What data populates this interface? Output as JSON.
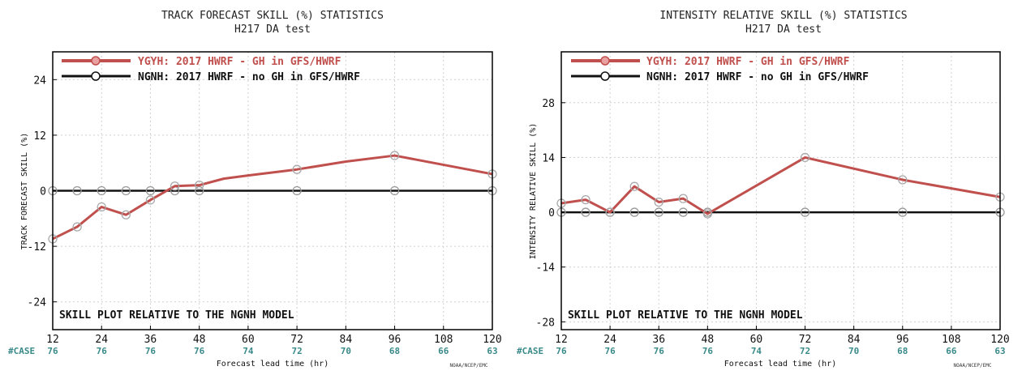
{
  "credit": "NOAA/NCEP/EMC",
  "chart_data": [
    {
      "type": "line",
      "title": "TRACK FORECAST SKILL (%) STATISTICS",
      "subtitle": "H217 DA test",
      "xlabel": "Forecast lead time (hr)",
      "ylabel": "TRACK FORECAST SKILL (%)",
      "xlim": [
        12,
        120
      ],
      "ylim": [
        -30,
        30
      ],
      "xticks": [
        12,
        24,
        36,
        48,
        60,
        72,
        84,
        96,
        108,
        120
      ],
      "yticks": [
        -24,
        -12,
        0,
        12,
        24
      ],
      "grid": true,
      "legend_position": "top-left",
      "note": "SKILL PLOT RELATIVE TO THE NGNH MODEL",
      "case_label": "#CASE",
      "cases": [
        "76",
        "76",
        "76",
        "76",
        "74",
        "72",
        "70",
        "68",
        "66",
        "63"
      ],
      "series": [
        {
          "name": "YGYH: 2017 HWRF - GH in GFS/HWRF",
          "color": "#c0504d",
          "x": [
            12,
            18,
            24,
            30,
            36,
            42,
            48,
            54,
            60,
            72,
            84,
            96,
            120
          ],
          "y": [
            -10.4,
            -7.8,
            -3.5,
            -5.2,
            -2.0,
            1.0,
            1.2,
            2.6,
            3.3,
            4.6,
            6.3,
            7.6,
            3.6
          ],
          "markers": [
            true,
            true,
            true,
            true,
            true,
            true,
            true,
            false,
            false,
            true,
            false,
            true,
            true
          ]
        },
        {
          "name": "NGNH: 2017 HWRF - no GH in GFS/HWRF",
          "color": "#111111",
          "x": [
            12,
            18,
            24,
            30,
            36,
            42,
            48,
            72,
            96,
            120
          ],
          "y": [
            0,
            0,
            0,
            0,
            0,
            0,
            0,
            0,
            0,
            0
          ],
          "markers": [
            true,
            true,
            true,
            true,
            true,
            true,
            true,
            true,
            true,
            true
          ]
        }
      ]
    },
    {
      "type": "line",
      "title": "INTENSITY RELATIVE SKILL (%) STATISTICS",
      "subtitle": "H217 DA test",
      "xlabel": "Forecast lead time (hr)",
      "ylabel": "INTENSITY RELATIVE SKILL (%)",
      "xlim": [
        12,
        120
      ],
      "ylim": [
        -30,
        41
      ],
      "xticks": [
        12,
        24,
        36,
        48,
        60,
        72,
        84,
        96,
        108,
        120
      ],
      "yticks": [
        -28,
        -14,
        0,
        14,
        28
      ],
      "grid": true,
      "legend_position": "top-left",
      "note": "SKILL PLOT RELATIVE TO THE NGNH MODEL",
      "case_label": "#CASE",
      "cases": [
        "76",
        "76",
        "76",
        "76",
        "74",
        "72",
        "70",
        "68",
        "66",
        "63"
      ],
      "series": [
        {
          "name": "YGYH: 2017 HWRF - GH in GFS/HWRF",
          "color": "#c0504d",
          "x": [
            12,
            18,
            24,
            30,
            36,
            42,
            48,
            72,
            96,
            120
          ],
          "y": [
            2.3,
            3.2,
            0,
            6.6,
            2.6,
            3.5,
            -0.4,
            14.0,
            8.3,
            3.9
          ],
          "markers": [
            true,
            true,
            true,
            true,
            true,
            true,
            true,
            true,
            true,
            true
          ]
        },
        {
          "name": "NGNH: 2017 HWRF - no GH in GFS/HWRF",
          "color": "#111111",
          "x": [
            12,
            18,
            24,
            30,
            36,
            42,
            48,
            72,
            96,
            120
          ],
          "y": [
            0,
            0,
            0,
            0,
            0,
            0,
            0,
            0,
            0,
            0
          ],
          "markers": [
            true,
            true,
            true,
            true,
            true,
            true,
            true,
            true,
            true,
            true
          ]
        }
      ]
    }
  ]
}
